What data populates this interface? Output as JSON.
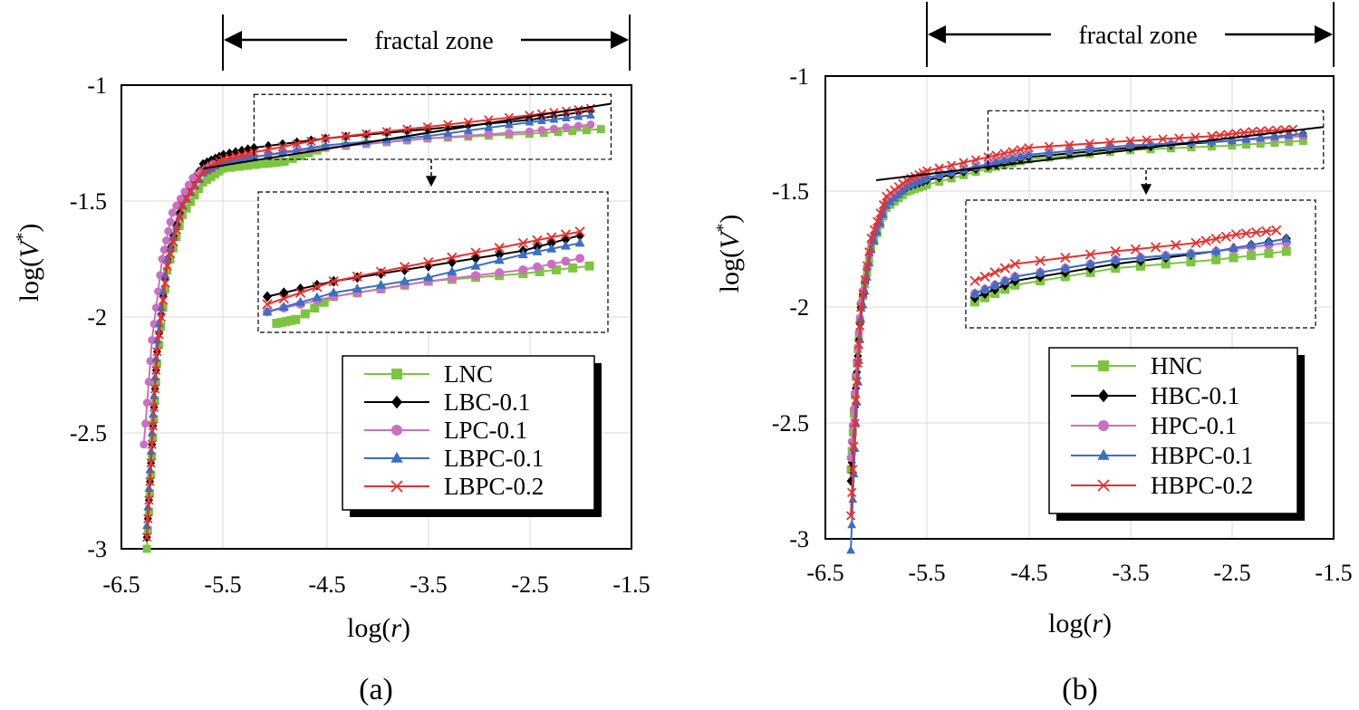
{
  "chart_data": [
    {
      "type": "scatter",
      "panel_label": "(a)",
      "zone_label": "fractal zone",
      "zone_range": [
        -5.5,
        -1.5
      ],
      "xlabel_pre": "log(",
      "xlabel_var": "r",
      "xlabel_post": ")",
      "ylabel_pre": "log(",
      "ylabel_var": "V",
      "ylabel_sup": "*",
      "ylabel_post": ")",
      "xlim": [
        -6.5,
        -1.5
      ],
      "ylim": [
        -3,
        -1
      ],
      "xticks": [
        "-6.5",
        "-5.5",
        "-4.5",
        "-3.5",
        "-2.5",
        "-1.5"
      ],
      "yticks": [
        "-1",
        "-1.5",
        "-2",
        "-2.5",
        "-3"
      ],
      "fit_line": [
        [
          -5.7,
          -1.36
        ],
        [
          -1.7,
          -1.08
        ]
      ],
      "inset_source_box": {
        "x": [
          -5.2,
          -1.7
        ],
        "y": [
          -1.32,
          -1.04
        ]
      },
      "series": [
        {
          "name": "LNC",
          "color": "#7dc540",
          "marker": "square",
          "points": [
            [
              -6.25,
              -3.0
            ],
            [
              -6.2,
              -2.6
            ],
            [
              -6.15,
              -2.2
            ],
            [
              -6.05,
              -1.8
            ],
            [
              -5.9,
              -1.56
            ],
            [
              -5.7,
              -1.42
            ],
            [
              -5.5,
              -1.36
            ],
            [
              -5.1,
              -1.34
            ],
            [
              -4.9,
              -1.33
            ],
            [
              -4.5,
              -1.27
            ],
            [
              -3.5,
              -1.23
            ],
            [
              -2.5,
              -1.21
            ],
            [
              -1.8,
              -1.19
            ]
          ]
        },
        {
          "name": "LBC-0.1",
          "color": "#000000",
          "marker": "diamond",
          "points": [
            [
              -6.25,
              -2.95
            ],
            [
              -6.2,
              -2.55
            ],
            [
              -6.15,
              -2.15
            ],
            [
              -6.05,
              -1.75
            ],
            [
              -5.9,
              -1.5
            ],
            [
              -5.7,
              -1.34
            ],
            [
              -5.5,
              -1.3
            ],
            [
              -5.2,
              -1.27
            ],
            [
              -4.5,
              -1.23
            ],
            [
              -3.5,
              -1.19
            ],
            [
              -2.5,
              -1.15
            ],
            [
              -1.9,
              -1.11
            ]
          ]
        },
        {
          "name": "LPC-0.1",
          "color": "#cc6fc0",
          "marker": "circle",
          "points": [
            [
              -6.28,
              -2.55
            ],
            [
              -6.2,
              -2.1
            ],
            [
              -6.1,
              -1.75
            ],
            [
              -6.0,
              -1.55
            ],
            [
              -5.8,
              -1.4
            ],
            [
              -5.6,
              -1.34
            ],
            [
              -5.2,
              -1.31
            ],
            [
              -4.5,
              -1.27
            ],
            [
              -3.5,
              -1.23
            ],
            [
              -2.5,
              -1.2
            ],
            [
              -1.9,
              -1.17
            ]
          ]
        },
        {
          "name": "LBPC-0.1",
          "color": "#3a6fc4",
          "marker": "triangle",
          "points": [
            [
              -6.25,
              -2.9
            ],
            [
              -6.2,
              -2.5
            ],
            [
              -6.15,
              -2.1
            ],
            [
              -6.05,
              -1.75
            ],
            [
              -5.9,
              -1.52
            ],
            [
              -5.7,
              -1.38
            ],
            [
              -5.5,
              -1.33
            ],
            [
              -5.2,
              -1.31
            ],
            [
              -4.5,
              -1.26
            ],
            [
              -3.5,
              -1.22
            ],
            [
              -2.5,
              -1.16
            ],
            [
              -1.9,
              -1.13
            ]
          ]
        },
        {
          "name": "LBPC-0.2",
          "color": "#e8302e",
          "marker": "x",
          "points": [
            [
              -6.25,
              -2.95
            ],
            [
              -6.2,
              -2.55
            ],
            [
              -6.15,
              -2.15
            ],
            [
              -6.05,
              -1.78
            ],
            [
              -5.9,
              -1.52
            ],
            [
              -5.7,
              -1.37
            ],
            [
              -5.5,
              -1.32
            ],
            [
              -5.2,
              -1.29
            ],
            [
              -4.5,
              -1.23
            ],
            [
              -3.5,
              -1.18
            ],
            [
              -2.5,
              -1.13
            ],
            [
              -1.9,
              -1.1
            ]
          ]
        }
      ]
    },
    {
      "type": "scatter",
      "panel_label": "(b)",
      "zone_label": "fractal zone",
      "zone_range": [
        -5.5,
        -1.5
      ],
      "xlabel_pre": "log(",
      "xlabel_var": "r",
      "xlabel_post": ")",
      "ylabel_pre": "log(",
      "ylabel_var": "V",
      "ylabel_sup": "*",
      "ylabel_post": ")",
      "xlim": [
        -6.5,
        -1.5
      ],
      "ylim": [
        -3,
        -1
      ],
      "xticks": [
        "-6.5",
        "-5.5",
        "-4.5",
        "-3.5",
        "-2.5",
        "-1.5"
      ],
      "yticks": [
        "-1",
        "-1.5",
        "-2",
        "-2.5",
        "-3"
      ],
      "fit_line": [
        [
          -6.0,
          -1.45
        ],
        [
          -1.6,
          -1.22
        ]
      ],
      "inset_source_box": {
        "x": [
          -4.9,
          -1.6
        ],
        "y": [
          -1.4,
          -1.15
        ]
      },
      "series": [
        {
          "name": "HNC",
          "color": "#7dc540",
          "marker": "square",
          "points": [
            [
              -6.25,
              -2.7
            ],
            [
              -6.2,
              -2.3
            ],
            [
              -6.15,
              -2.0
            ],
            [
              -6.05,
              -1.75
            ],
            [
              -5.9,
              -1.57
            ],
            [
              -5.7,
              -1.5
            ],
            [
              -5.5,
              -1.47
            ],
            [
              -4.9,
              -1.4
            ],
            [
              -4.5,
              -1.36
            ],
            [
              -3.5,
              -1.32
            ],
            [
              -2.5,
              -1.3
            ],
            [
              -1.8,
              -1.28
            ]
          ]
        },
        {
          "name": "HBC-0.1",
          "color": "#000000",
          "marker": "diamond",
          "points": [
            [
              -6.25,
              -2.75
            ],
            [
              -6.2,
              -2.35
            ],
            [
              -6.15,
              -2.0
            ],
            [
              -6.05,
              -1.72
            ],
            [
              -5.9,
              -1.55
            ],
            [
              -5.7,
              -1.48
            ],
            [
              -5.5,
              -1.45
            ],
            [
              -4.9,
              -1.39
            ],
            [
              -4.5,
              -1.35
            ],
            [
              -3.5,
              -1.31
            ],
            [
              -2.5,
              -1.28
            ],
            [
              -1.8,
              -1.25
            ]
          ]
        },
        {
          "name": "HPC-0.1",
          "color": "#cc6fc0",
          "marker": "circle",
          "points": [
            [
              -6.25,
              -2.65
            ],
            [
              -6.2,
              -2.3
            ],
            [
              -6.15,
              -1.98
            ],
            [
              -6.05,
              -1.72
            ],
            [
              -5.9,
              -1.55
            ],
            [
              -5.7,
              -1.47
            ],
            [
              -5.5,
              -1.44
            ],
            [
              -4.9,
              -1.38
            ],
            [
              -4.5,
              -1.34
            ],
            [
              -3.5,
              -1.3
            ],
            [
              -2.5,
              -1.28
            ],
            [
              -1.8,
              -1.26
            ]
          ]
        },
        {
          "name": "HBPC-0.1",
          "color": "#3a6fc4",
          "marker": "triangle",
          "points": [
            [
              -6.25,
              -3.05
            ],
            [
              -6.2,
              -2.5
            ],
            [
              -6.15,
              -2.05
            ],
            [
              -6.05,
              -1.75
            ],
            [
              -5.9,
              -1.56
            ],
            [
              -5.7,
              -1.48
            ],
            [
              -5.5,
              -1.44
            ],
            [
              -4.9,
              -1.38
            ],
            [
              -4.5,
              -1.34
            ],
            [
              -3.5,
              -1.3
            ],
            [
              -2.5,
              -1.28
            ],
            [
              -1.8,
              -1.25
            ]
          ]
        },
        {
          "name": "HBPC-0.2",
          "color": "#e8302e",
          "marker": "x",
          "points": [
            [
              -6.25,
              -2.9
            ],
            [
              -6.2,
              -2.4
            ],
            [
              -6.15,
              -2.0
            ],
            [
              -6.05,
              -1.7
            ],
            [
              -5.9,
              -1.52
            ],
            [
              -5.7,
              -1.45
            ],
            [
              -5.5,
              -1.41
            ],
            [
              -4.9,
              -1.35
            ],
            [
              -4.5,
              -1.31
            ],
            [
              -3.5,
              -1.28
            ],
            [
              -2.7,
              -1.26
            ],
            [
              -2.3,
              -1.24
            ],
            [
              -1.9,
              -1.23
            ]
          ]
        }
      ]
    }
  ]
}
